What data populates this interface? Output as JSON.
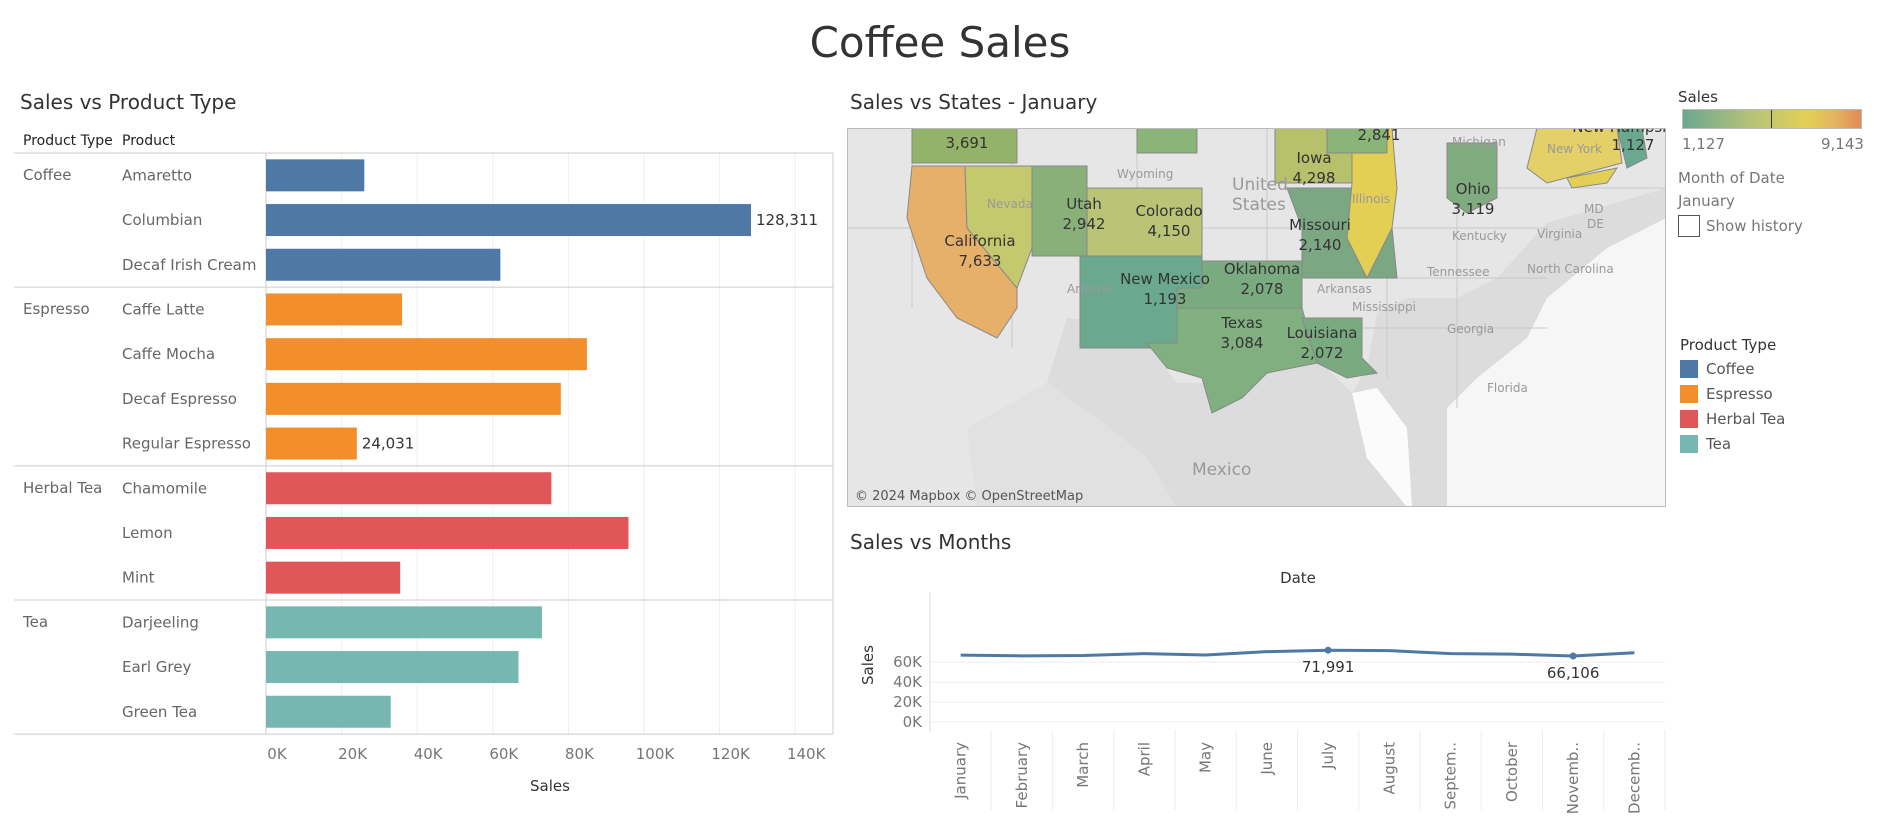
{
  "dashboard_title": "Coffee Sales",
  "colors": {
    "Coffee": "#4e79a7",
    "Espresso": "#f28e2b",
    "Herbal Tea": "#e15759",
    "Tea": "#76b7b2"
  },
  "bar_section": {
    "title": "Sales vs Product Type",
    "col_header_type": "Product Type",
    "col_header_product": "Product"
  },
  "map_section": {
    "title": "Sales vs States - January",
    "attribution": "© 2024 Mapbox © OpenStreetMap",
    "countries": [
      "United States",
      "Mexico"
    ],
    "state_labels": [
      "Wyoming",
      "Nevada",
      "Arizona",
      "Michigan",
      "Kentucky",
      "Tennessee",
      "North Carolina",
      "Virginia",
      "Arkansas",
      "Mississippi",
      "Georgia",
      "Florida",
      "MD",
      "DE",
      "New York",
      "Illinois"
    ],
    "states": [
      {
        "name": "",
        "value": "3,691"
      },
      {
        "name": "",
        "value": "2,841"
      },
      {
        "name": "New Hampsh",
        "value": "1,127"
      },
      {
        "name": "Iowa",
        "value": "4,298"
      },
      {
        "name": "Ohio",
        "value": "3,119"
      },
      {
        "name": "Utah",
        "value": "2,942"
      },
      {
        "name": "Colorado",
        "value": "4,150"
      },
      {
        "name": "California",
        "value": "7,633"
      },
      {
        "name": "Missouri",
        "value": "2,140"
      },
      {
        "name": "New Mexico",
        "value": "1,193"
      },
      {
        "name": "Oklahoma",
        "value": "2,078"
      },
      {
        "name": "Texas",
        "value": "3,084"
      },
      {
        "name": "Louisiana",
        "value": "2,072"
      }
    ]
  },
  "line_section": {
    "title": "Sales vs Months"
  },
  "legend": {
    "sales_title": "Sales",
    "sales_min": "1,127",
    "sales_max": "9,143",
    "month_filter_label": "Month of Date",
    "month_filter_value": "January",
    "show_history_label": "Show history",
    "product_type_title": "Product Type",
    "product_types": [
      "Coffee",
      "Espresso",
      "Herbal Tea",
      "Tea"
    ]
  },
  "chart_data": [
    {
      "type": "bar",
      "title": "Sales vs Product Type",
      "xlabel": "Sales",
      "xlim": [
        0,
        150000
      ],
      "x_ticks": [
        "0K",
        "20K",
        "40K",
        "60K",
        "80K",
        "100K",
        "120K",
        "140K"
      ],
      "groups": [
        {
          "type": "Coffee",
          "products": [
            {
              "name": "Amaretto",
              "value": 26000
            },
            {
              "name": "Columbian",
              "value": 128311,
              "label": "128,311"
            },
            {
              "name": "Decaf Irish Cream",
              "value": 62000
            }
          ]
        },
        {
          "type": "Espresso",
          "products": [
            {
              "name": "Caffe Latte",
              "value": 36000
            },
            {
              "name": "Caffe Mocha",
              "value": 84900
            },
            {
              "name": "Decaf Espresso",
              "value": 78000
            },
            {
              "name": "Regular Espresso",
              "value": 24031,
              "label": "24,031"
            }
          ]
        },
        {
          "type": "Herbal Tea",
          "products": [
            {
              "name": "Chamomile",
              "value": 75500
            },
            {
              "name": "Lemon",
              "value": 95900
            },
            {
              "name": "Mint",
              "value": 35500
            }
          ]
        },
        {
          "type": "Tea",
          "products": [
            {
              "name": "Darjeeling",
              "value": 73000
            },
            {
              "name": "Earl Grey",
              "value": 66800
            },
            {
              "name": "Green Tea",
              "value": 33000
            }
          ]
        }
      ]
    },
    {
      "type": "line",
      "title": "Sales vs Months",
      "xlabel": "Date",
      "ylabel": "Sales",
      "y_ticks": [
        "0K",
        "20K",
        "40K",
        "60K"
      ],
      "categories": [
        "January",
        "February",
        "March",
        "April",
        "May",
        "June",
        "July",
        "August",
        "Septem..",
        "October",
        "Novemb..",
        "Decemb.."
      ],
      "values": [
        67000,
        66300,
        66700,
        68600,
        67200,
        70500,
        71991,
        71600,
        68500,
        68000,
        66106,
        69400
      ],
      "labels": [
        {
          "index": 6,
          "text": "71,991"
        },
        {
          "index": 10,
          "text": "66,106"
        }
      ]
    }
  ]
}
